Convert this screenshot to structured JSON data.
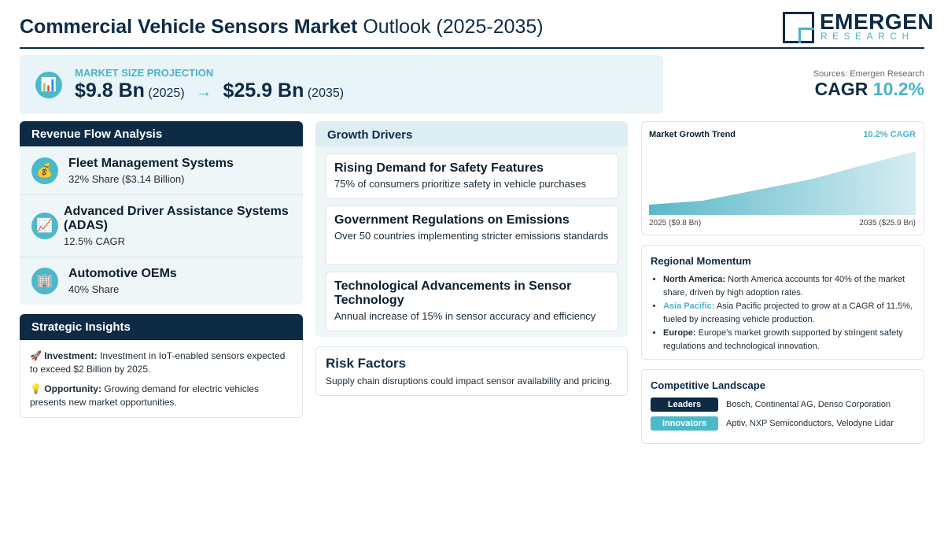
{
  "header": {
    "title_bold": "Commercial Vehicle Sensors Market",
    "title_rest": "Outlook (2025-2035)",
    "logo_name": "EMERGEN",
    "logo_sub": "RESEARCH"
  },
  "projection": {
    "label": "MARKET SIZE PROJECTION",
    "start_value": "$9.8 Bn",
    "start_year": "(2025)",
    "arrow": "→",
    "end_value": "$25.9 Bn",
    "end_year": "(2035)"
  },
  "summary": {
    "source": "Sources: Emergen Research",
    "cagr_label": "CAGR",
    "cagr_value": "10.2%"
  },
  "revenue_flow": {
    "title": "Revenue Flow Analysis",
    "items": [
      {
        "name": "Fleet Management Systems",
        "detail": "32% Share ($3.14 Billion)"
      },
      {
        "name": "Advanced Driver Assistance Systems (ADAS)",
        "detail": "12.5% CAGR"
      },
      {
        "name": "Automotive OEMs",
        "detail": "40% Share"
      }
    ]
  },
  "strategic_insights": {
    "title": "Strategic Insights",
    "items": [
      {
        "label": "Investment:",
        "text": "Investment in IoT-enabled sensors expected to exceed $2 Billion by 2025."
      },
      {
        "label": "Opportunity:",
        "text": "Growing demand for electric vehicles presents new market opportunities."
      }
    ]
  },
  "growth_drivers": {
    "title": "Growth Drivers",
    "items": [
      {
        "title": "Rising Demand for Safety Features",
        "text": "75% of consumers prioritize safety in vehicle purchases"
      },
      {
        "title": "Government Regulations on Emissions",
        "text": "Over 50 countries implementing stricter emissions standards"
      },
      {
        "title": "Technological Advancements in Sensor Technology",
        "text": "Annual increase of 15% in sensor accuracy and efficiency"
      }
    ]
  },
  "risk_factors": {
    "title": "Risk Factors",
    "text": "Supply chain disruptions could impact sensor availability and pricing."
  },
  "growth_trend": {
    "title": "Market Growth Trend",
    "badge": "10.2% CAGR",
    "start_label": "2025 ($9.8 Bn)",
    "end_label": "2035 ($25.9 Bn)"
  },
  "regional_momentum": {
    "title": "Regional Momentum",
    "items": [
      {
        "region": "North America:",
        "text": "North America accounts for 40% of the market share, driven by high adoption rates."
      },
      {
        "region": "Asia Pacific:",
        "text": "Asia Pacific projected to grow at a CAGR of 11.5%, fueled by increasing vehicle production."
      },
      {
        "region": "Europe:",
        "text": "Europe's market growth supported by stringent safety regulations and technological innovation."
      }
    ]
  },
  "competitive_landscape": {
    "title": "Competitive Landscape",
    "rows": [
      {
        "tag": "Leaders",
        "companies": "Bosch, Continental AG, Denso Corporation"
      },
      {
        "tag": "Innovators",
        "companies": "Aptiv, NXP Semiconductors, Velodyne Lidar"
      }
    ]
  }
}
